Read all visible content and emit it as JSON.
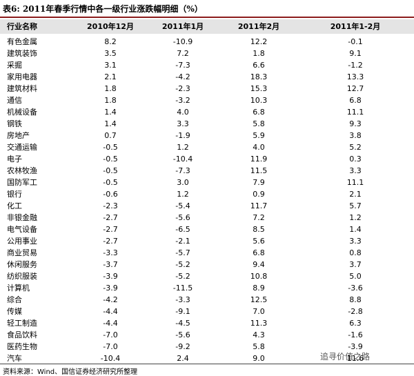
{
  "title": "表6:  2011年春季行情中各一级行业涨跌幅明细（%）",
  "table": {
    "header": [
      "行业名称",
      "2010年12月",
      "2011年1月",
      "2011年2月",
      "2011年1-2月"
    ],
    "rows": [
      [
        "有色金属",
        "8.2",
        "-10.9",
        "12.2",
        "-0.1"
      ],
      [
        "建筑装饰",
        "3.5",
        "7.2",
        "1.8",
        "9.1"
      ],
      [
        "采掘",
        "3.1",
        "-7.3",
        "6.6",
        "-1.2"
      ],
      [
        "家用电器",
        "2.1",
        "-4.2",
        "18.3",
        "13.3"
      ],
      [
        "建筑材料",
        "1.8",
        "-2.3",
        "15.3",
        "12.7"
      ],
      [
        "通信",
        "1.8",
        "-3.2",
        "10.3",
        "6.8"
      ],
      [
        "机械设备",
        "1.4",
        "4.0",
        "6.8",
        "11.1"
      ],
      [
        "钢铁",
        "1.4",
        "3.3",
        "5.8",
        "9.3"
      ],
      [
        "房地产",
        "0.7",
        "-1.9",
        "5.9",
        "3.8"
      ],
      [
        "交通运输",
        "-0.5",
        "1.2",
        "4.0",
        "5.2"
      ],
      [
        "电子",
        "-0.5",
        "-10.4",
        "11.9",
        "0.3"
      ],
      [
        "农林牧渔",
        "-0.5",
        "-7.3",
        "11.5",
        "3.3"
      ],
      [
        "国防军工",
        "-0.5",
        "3.0",
        "7.9",
        "11.1"
      ],
      [
        "银行",
        "-0.6",
        "1.2",
        "0.9",
        "2.1"
      ],
      [
        "化工",
        "-2.3",
        "-5.4",
        "11.7",
        "5.7"
      ],
      [
        "非银金融",
        "-2.7",
        "-5.6",
        "7.2",
        "1.2"
      ],
      [
        "电气设备",
        "-2.7",
        "-6.5",
        "8.5",
        "1.4"
      ],
      [
        "公用事业",
        "-2.7",
        "-2.1",
        "5.6",
        "3.3"
      ],
      [
        "商业贸易",
        "-3.3",
        "-5.7",
        "6.8",
        "0.8"
      ],
      [
        "休闲服务",
        "-3.7",
        "-5.2",
        "9.4",
        "3.7"
      ],
      [
        "纺织服装",
        "-3.9",
        "-5.2",
        "10.8",
        "5.0"
      ],
      [
        "计算机",
        "-3.9",
        "-11.5",
        "8.9",
        "-3.6"
      ],
      [
        "综合",
        "-4.2",
        "-3.3",
        "12.5",
        "8.8"
      ],
      [
        "传媒",
        "-4.4",
        "-9.1",
        "7.0",
        "-2.8"
      ],
      [
        "轻工制造",
        "-4.4",
        "-4.5",
        "11.3",
        "6.3"
      ],
      [
        "食品饮料",
        "-7.0",
        "-5.6",
        "4.3",
        "-1.6"
      ],
      [
        "医药生物",
        "-7.0",
        "-9.2",
        "5.8",
        "-3.9"
      ],
      [
        "汽车",
        "-10.4",
        "2.4",
        "9.0",
        "11.6"
      ]
    ]
  },
  "source": "资料来源：Wind、国信证券经济研究所整理",
  "watermark": "追寻价值之路"
}
